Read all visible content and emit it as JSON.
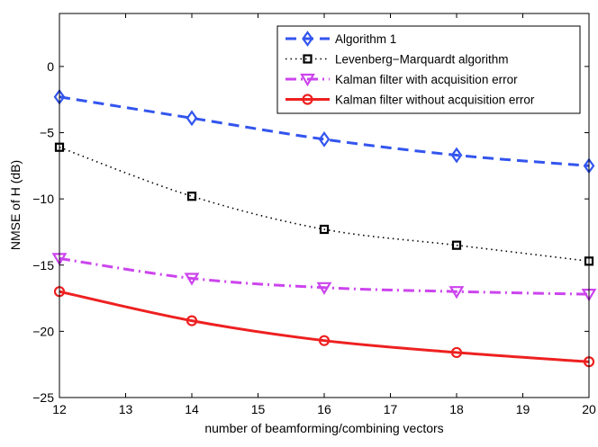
{
  "chart_data": {
    "type": "line",
    "title": "",
    "xlabel": "number of beamforming/combining vectors",
    "ylabel": "NMSE of H (dB)",
    "xlim": [
      12,
      20
    ],
    "ylim": [
      -25,
      4
    ],
    "xticks": [
      12,
      13,
      14,
      15,
      16,
      17,
      18,
      19,
      20
    ],
    "yticks": [
      -25,
      -20,
      -15,
      -10,
      -5,
      0
    ],
    "ytick_labels": [
      "−25",
      "−20",
      "−15",
      "−10",
      "−5",
      "0"
    ],
    "legend_position": "top-right",
    "x": [
      12,
      14,
      16,
      18,
      20
    ],
    "series": [
      {
        "name": "Algorithm 1",
        "color": "#3355ee",
        "style": "dashed",
        "marker": "diamond",
        "values": [
          -2.3,
          -3.9,
          -5.5,
          -6.7,
          -7.5
        ]
      },
      {
        "name": "Levenberg−Marquardt algorithm",
        "color": "#000000",
        "style": "dotted",
        "marker": "square",
        "values": [
          -6.1,
          -9.8,
          -12.3,
          -13.5,
          -14.7
        ]
      },
      {
        "name": "Kalman filter with  acquisition error",
        "color": "#cc44ee",
        "style": "dashdot",
        "marker": "triangle-down",
        "values": [
          -14.5,
          -16.0,
          -16.7,
          -17.0,
          -17.2
        ]
      },
      {
        "name": "Kalman filter without acquisition error",
        "color": "#ee2020",
        "style": "solid",
        "marker": "circle",
        "values": [
          -17.0,
          -19.2,
          -20.7,
          -21.6,
          -22.3
        ]
      }
    ]
  }
}
